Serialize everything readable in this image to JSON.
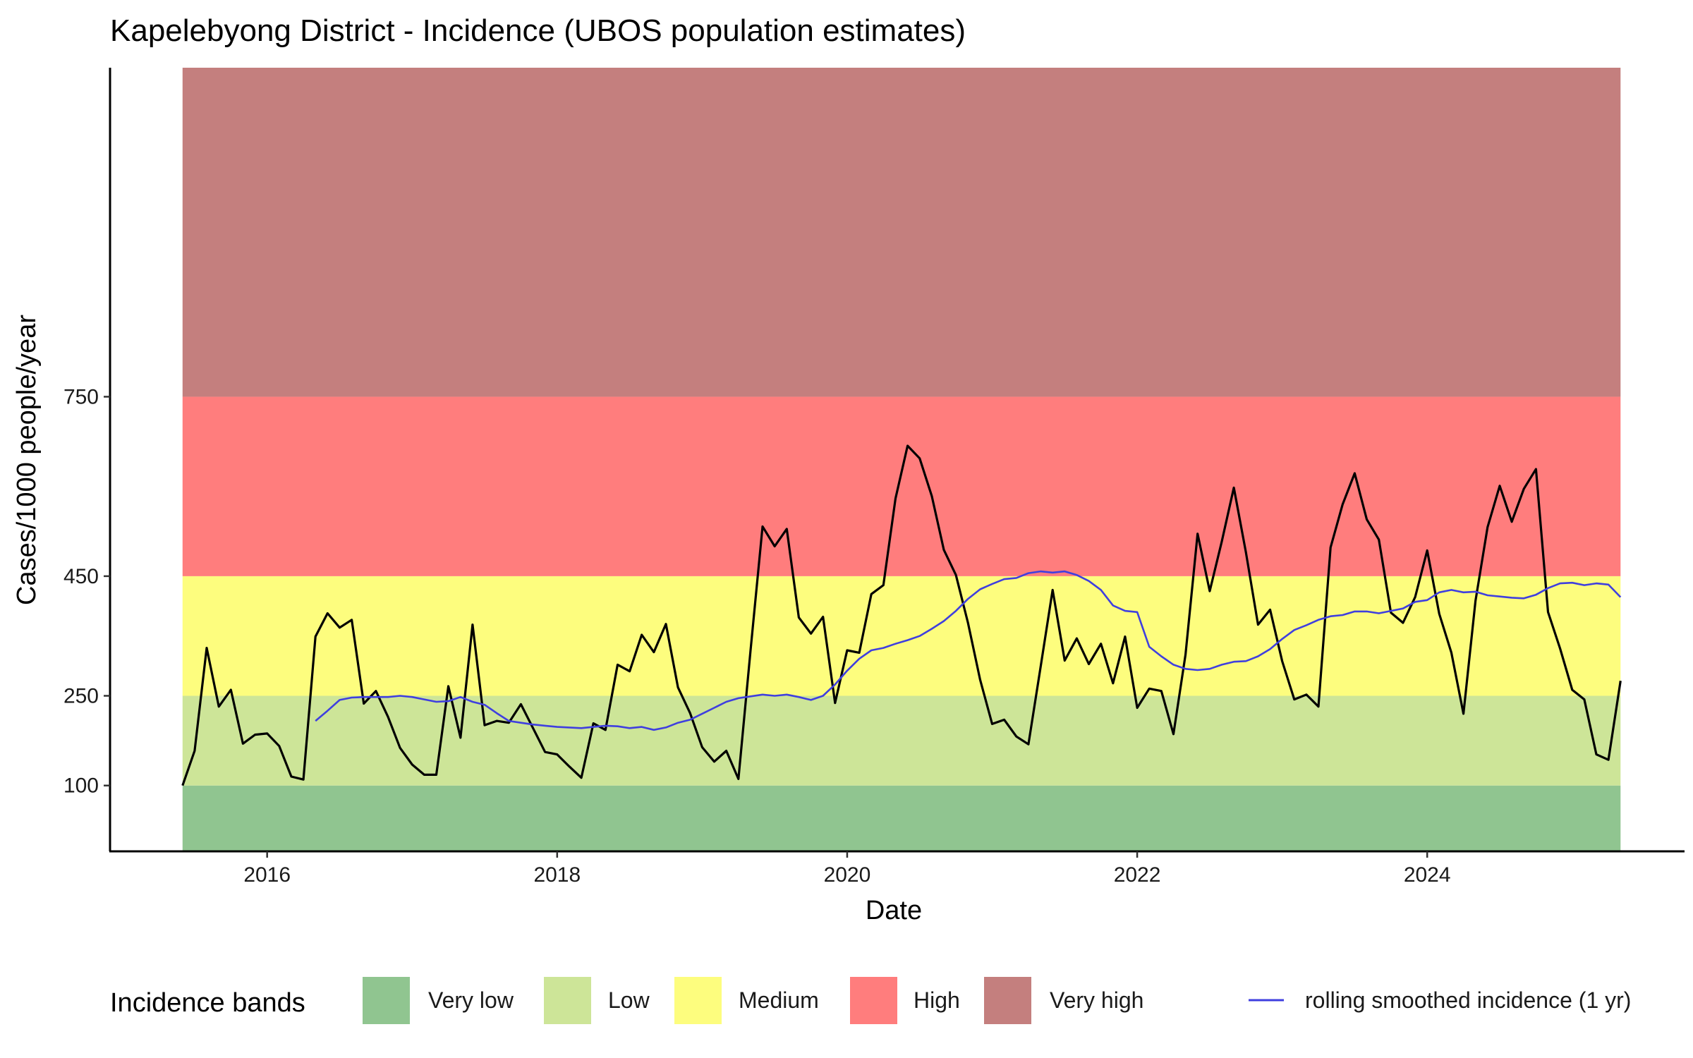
{
  "chart_data": {
    "type": "line",
    "title": "Kapelebyong District - Incidence (UBOS population estimates)",
    "xlabel": "Date",
    "ylabel": "Cases/1000 people/year",
    "x_tick_labels": [
      "2016",
      "2018",
      "2020",
      "2022",
      "2024"
    ],
    "y_tick_labels": [
      "100",
      "250",
      "450",
      "750"
    ],
    "xlim": [
      "2014-12-01",
      "2025-10-10"
    ],
    "ylim": [
      -10,
      1300
    ],
    "grid": false,
    "legend_position": "bottom",
    "legend_title": "Incidence bands",
    "bands": [
      {
        "name": "Very low",
        "from": -10,
        "to": 100,
        "color": "#90c590"
      },
      {
        "name": "Low",
        "from": 100,
        "to": 250,
        "color": "#cde598"
      },
      {
        "name": "Medium",
        "from": 250,
        "to": 450,
        "color": "#fdfd7e"
      },
      {
        "name": "High",
        "from": 450,
        "to": 750,
        "color": "#ff7d7d"
      },
      {
        "name": "Very high",
        "from": 750,
        "to": 1300,
        "color": "#c47f7e"
      }
    ],
    "band_x_range": [
      "2015-06",
      "2025-05"
    ],
    "series": [
      {
        "name": "",
        "color": "#000000",
        "x": [
          "2015-06",
          "2015-07",
          "2015-08",
          "2015-09",
          "2015-10",
          "2015-11",
          "2015-12",
          "2016-01",
          "2016-02",
          "2016-03",
          "2016-04",
          "2016-05",
          "2016-06",
          "2016-07",
          "2016-08",
          "2016-09",
          "2016-10",
          "2016-11",
          "2016-12",
          "2017-01",
          "2017-02",
          "2017-03",
          "2017-04",
          "2017-05",
          "2017-06",
          "2017-07",
          "2017-08",
          "2017-09",
          "2017-10",
          "2017-11",
          "2017-12",
          "2018-01",
          "2018-02",
          "2018-03",
          "2018-04",
          "2018-05",
          "2018-06",
          "2018-07",
          "2018-08",
          "2018-09",
          "2018-10",
          "2018-11",
          "2018-12",
          "2019-01",
          "2019-02",
          "2019-03",
          "2019-04",
          "2019-05",
          "2019-06",
          "2019-07",
          "2019-08",
          "2019-09",
          "2019-10",
          "2019-11",
          "2019-12",
          "2020-01",
          "2020-02",
          "2020-03",
          "2020-04",
          "2020-05",
          "2020-06",
          "2020-07",
          "2020-08",
          "2020-09",
          "2020-10",
          "2020-11",
          "2020-12",
          "2021-01",
          "2021-02",
          "2021-03",
          "2021-04",
          "2021-05",
          "2021-06",
          "2021-07",
          "2021-08",
          "2021-09",
          "2021-10",
          "2021-11",
          "2021-12",
          "2022-01",
          "2022-02",
          "2022-03",
          "2022-04",
          "2022-05",
          "2022-06",
          "2022-07",
          "2022-08",
          "2022-09",
          "2022-10",
          "2022-11",
          "2022-12",
          "2023-01",
          "2023-02",
          "2023-03",
          "2023-04",
          "2023-05",
          "2023-06",
          "2023-07",
          "2023-08",
          "2023-09",
          "2023-10",
          "2023-11",
          "2023-12",
          "2024-01",
          "2024-02",
          "2024-03",
          "2024-04",
          "2024-05",
          "2024-06",
          "2024-07",
          "2024-08",
          "2024-09",
          "2024-10",
          "2024-11",
          "2024-12",
          "2025-01",
          "2025-02",
          "2025-03",
          "2025-04",
          "2025-05"
        ],
        "y": [
          100,
          158,
          330,
          232,
          260,
          170,
          185,
          187,
          166,
          115,
          110,
          349,
          388,
          364,
          377,
          237,
          258,
          215,
          163,
          135,
          118,
          118,
          266,
          180,
          369,
          201,
          208,
          205,
          236,
          196,
          156,
          152,
          132,
          113,
          204,
          193,
          302,
          291,
          352,
          323,
          370,
          264,
          221,
          164,
          140,
          158,
          111,
          325,
          533,
          500,
          529,
          381,
          354,
          382,
          238,
          326,
          322,
          420,
          435,
          580,
          668,
          647,
          584,
          494,
          452,
          372,
          277,
          203,
          210,
          182,
          169,
          297,
          427,
          309,
          346,
          303,
          337,
          271,
          349,
          230,
          262,
          258,
          186,
          319,
          521,
          425,
          508,
          598,
          490,
          369,
          394,
          308,
          244,
          252,
          232,
          498,
          570,
          622,
          545,
          511,
          389,
          372,
          415,
          493,
          387,
          322,
          220,
          409,
          532,
          601,
          541,
          596,
          629,
          390,
          329,
          260,
          244,
          152,
          143,
          275
        ]
      },
      {
        "name": "rolling smoothed incidence (1 yr)",
        "color": "#3f3fdf",
        "x": [
          "2016-05",
          "2016-06",
          "2016-07",
          "2016-08",
          "2016-09",
          "2016-10",
          "2016-11",
          "2016-12",
          "2017-01",
          "2017-02",
          "2017-03",
          "2017-04",
          "2017-05",
          "2017-06",
          "2017-07",
          "2017-08",
          "2017-09",
          "2017-10",
          "2017-11",
          "2017-12",
          "2018-01",
          "2018-02",
          "2018-03",
          "2018-04",
          "2018-05",
          "2018-06",
          "2018-07",
          "2018-08",
          "2018-09",
          "2018-10",
          "2018-11",
          "2018-12",
          "2019-01",
          "2019-02",
          "2019-03",
          "2019-04",
          "2019-05",
          "2019-06",
          "2019-07",
          "2019-08",
          "2019-09",
          "2019-10",
          "2019-11",
          "2019-12",
          "2020-01",
          "2020-02",
          "2020-03",
          "2020-04",
          "2020-05",
          "2020-06",
          "2020-07",
          "2020-08",
          "2020-09",
          "2020-10",
          "2020-11",
          "2020-12",
          "2021-01",
          "2021-02",
          "2021-03",
          "2021-04",
          "2021-05",
          "2021-06",
          "2021-07",
          "2021-08",
          "2021-09",
          "2021-10",
          "2021-11",
          "2021-12",
          "2022-01",
          "2022-02",
          "2022-03",
          "2022-04",
          "2022-05",
          "2022-06",
          "2022-07",
          "2022-08",
          "2022-09",
          "2022-10",
          "2022-11",
          "2022-12",
          "2023-01",
          "2023-02",
          "2023-03",
          "2023-04",
          "2023-05",
          "2023-06",
          "2023-07",
          "2023-08",
          "2023-09",
          "2023-10",
          "2023-11",
          "2023-12",
          "2024-01",
          "2024-02",
          "2024-03",
          "2024-04",
          "2024-05",
          "2024-06",
          "2024-07",
          "2024-08",
          "2024-09",
          "2024-10",
          "2024-11",
          "2024-12",
          "2025-01",
          "2025-02",
          "2025-03",
          "2025-04",
          "2025-05"
        ],
        "y": [
          208,
          225,
          243,
          247,
          248,
          248,
          248,
          250,
          248,
          244,
          240,
          241,
          248,
          240,
          235,
          221,
          208,
          205,
          202,
          200,
          198,
          197,
          196,
          198,
          200,
          199,
          196,
          198,
          193,
          197,
          205,
          210,
          220,
          230,
          240,
          246,
          249,
          252,
          250,
          252,
          248,
          243,
          250,
          269,
          292,
          312,
          326,
          330,
          337,
          343,
          350,
          362,
          375,
          392,
          412,
          428,
          437,
          445,
          447,
          455,
          458,
          456,
          458,
          452,
          442,
          427,
          401,
          392,
          390,
          332,
          316,
          302,
          295,
          293,
          295,
          302,
          307,
          308,
          316,
          328,
          345,
          360,
          368,
          377,
          383,
          385,
          391,
          391,
          388,
          392,
          396,
          407,
          410,
          423,
          427,
          423,
          424,
          418,
          416,
          414,
          413,
          419,
          430,
          438,
          439,
          435,
          438,
          436,
          415
        ]
      }
    ],
    "legend_items": [
      "Very low",
      "Low",
      "Medium",
      "High",
      "Very high",
      "rolling smoothed incidence (1 yr)"
    ]
  }
}
